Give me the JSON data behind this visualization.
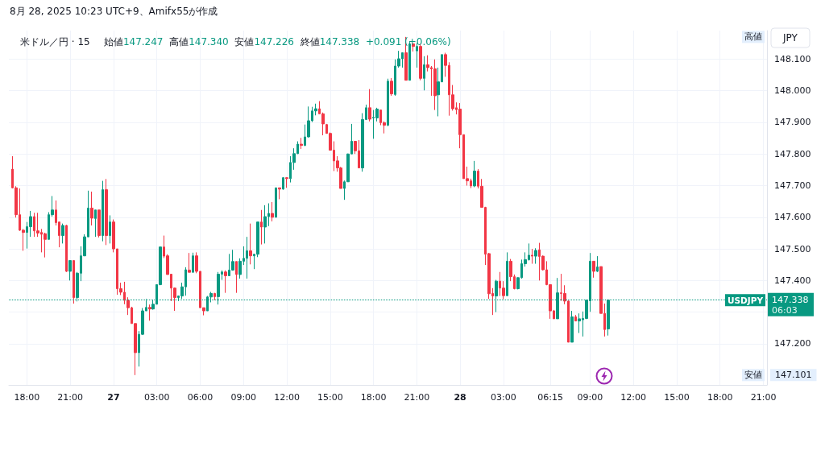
{
  "chart_data": {
    "type": "candlestick",
    "title": "米ドル／円 · 15",
    "subtitle": "始値147.247  高値147.340  安値147.226  終値147.338  +0.091 (+0.06%)",
    "annotations": [
      "8月 28, 2025 10:23 UTC+9、Amifx55が作成",
      {
        "text": "高値",
        "y": 148.17
      },
      {
        "text": "安値",
        "y": 147.101
      },
      "147.101",
      "147.338",
      "06:03",
      "JPY"
    ],
    "x": [
      "2025-08-26T17:00",
      "2025-08-26T17:15",
      "2025-08-26T17:30",
      "2025-08-26T17:45",
      "2025-08-26T18:00",
      "2025-08-26T18:15",
      "2025-08-26T18:30",
      "2025-08-26T18:45",
      "2025-08-26T19:00",
      "2025-08-26T19:15",
      "2025-08-26T19:30",
      "2025-08-26T19:45",
      "2025-08-26T20:00",
      "2025-08-26T20:15",
      "2025-08-26T20:30",
      "2025-08-26T20:45",
      "2025-08-26T21:00",
      "2025-08-26T21:15",
      "2025-08-26T21:30",
      "2025-08-26T21:45",
      "2025-08-26T22:00",
      "2025-08-26T22:15",
      "2025-08-26T22:30",
      "2025-08-26T22:45",
      "2025-08-26T23:00",
      "2025-08-26T23:15",
      "2025-08-26T23:30",
      "2025-08-26T23:45",
      "2025-08-27T00:00",
      "2025-08-27T00:15",
      "2025-08-27T00:30",
      "2025-08-27T00:45",
      "2025-08-27T01:00",
      "2025-08-27T01:15",
      "2025-08-27T01:30",
      "2025-08-27T01:45",
      "2025-08-27T02:00",
      "2025-08-27T02:15",
      "2025-08-27T02:30",
      "2025-08-27T02:45",
      "2025-08-27T03:00",
      "2025-08-27T03:15",
      "2025-08-27T03:30",
      "2025-08-27T03:45",
      "2025-08-27T04:00",
      "2025-08-27T04:15",
      "2025-08-27T04:30",
      "2025-08-27T04:45",
      "2025-08-27T05:00",
      "2025-08-27T05:15",
      "2025-08-27T05:30",
      "2025-08-27T05:45",
      "2025-08-27T06:00",
      "2025-08-27T06:15",
      "2025-08-27T06:30",
      "2025-08-27T06:45",
      "2025-08-27T07:00",
      "2025-08-27T07:15",
      "2025-08-27T07:30",
      "2025-08-27T07:45",
      "2025-08-27T08:00",
      "2025-08-27T08:15",
      "2025-08-27T08:30",
      "2025-08-27T08:45",
      "2025-08-27T09:00",
      "2025-08-27T09:15",
      "2025-08-27T09:30",
      "2025-08-27T09:45",
      "2025-08-27T10:00",
      "2025-08-27T10:15",
      "2025-08-27T10:30",
      "2025-08-27T10:45",
      "2025-08-27T11:00",
      "2025-08-27T11:15",
      "2025-08-27T11:30",
      "2025-08-27T11:45",
      "2025-08-27T12:00",
      "2025-08-27T12:15",
      "2025-08-27T12:30",
      "2025-08-27T12:45",
      "2025-08-27T13:00",
      "2025-08-27T13:15",
      "2025-08-27T13:30",
      "2025-08-27T13:45",
      "2025-08-27T14:00",
      "2025-08-27T14:15",
      "2025-08-27T14:30",
      "2025-08-27T14:45",
      "2025-08-27T15:00",
      "2025-08-27T15:15",
      "2025-08-27T15:30",
      "2025-08-27T15:45",
      "2025-08-27T16:00",
      "2025-08-27T16:15",
      "2025-08-27T16:30",
      "2025-08-27T16:45",
      "2025-08-27T17:00",
      "2025-08-27T17:15",
      "2025-08-27T17:30",
      "2025-08-27T17:45",
      "2025-08-27T18:00",
      "2025-08-27T18:15",
      "2025-08-27T18:30",
      "2025-08-27T18:45",
      "2025-08-27T19:00",
      "2025-08-27T19:15",
      "2025-08-27T19:30",
      "2025-08-27T19:45",
      "2025-08-27T20:00",
      "2025-08-27T20:15",
      "2025-08-27T20:30",
      "2025-08-27T20:45",
      "2025-08-27T21:00",
      "2025-08-27T21:15",
      "2025-08-27T21:30",
      "2025-08-27T21:45",
      "2025-08-27T22:00",
      "2025-08-27T22:15",
      "2025-08-27T22:30",
      "2025-08-27T22:45",
      "2025-08-27T23:00",
      "2025-08-27T23:15",
      "2025-08-27T23:30",
      "2025-08-27T23:45",
      "2025-08-28T00:00",
      "2025-08-28T00:15",
      "2025-08-28T00:30",
      "2025-08-28T00:45",
      "2025-08-28T01:00",
      "2025-08-28T01:15",
      "2025-08-28T01:30",
      "2025-08-28T01:45",
      "2025-08-28T02:00",
      "2025-08-28T02:15",
      "2025-08-28T02:30",
      "2025-08-28T02:45",
      "2025-08-28T03:00",
      "2025-08-28T03:15",
      "2025-08-28T03:30",
      "2025-08-28T03:45",
      "2025-08-28T04:00",
      "2025-08-28T04:15",
      "2025-08-28T04:30",
      "2025-08-28T04:45",
      "2025-08-28T05:00",
      "2025-08-28T05:15",
      "2025-08-28T05:30",
      "2025-08-28T05:45",
      "2025-08-28T06:00",
      "2025-08-28T06:15",
      "2025-08-28T06:30",
      "2025-08-28T06:45",
      "2025-08-28T07:00",
      "2025-08-28T07:15",
      "2025-08-28T07:30",
      "2025-08-28T07:45",
      "2025-08-28T08:00",
      "2025-08-28T08:15",
      "2025-08-28T08:30",
      "2025-08-28T08:45",
      "2025-08-28T09:00",
      "2025-08-28T09:15",
      "2025-08-28T09:30",
      "2025-08-28T09:45",
      "2025-08-28T10:00",
      "2025-08-28T10:15"
    ],
    "ohlc": [
      [
        147.752,
        147.793,
        147.691,
        147.693
      ],
      [
        147.693,
        147.698,
        147.599,
        147.608
      ],
      [
        147.608,
        147.691,
        147.557,
        147.559
      ],
      [
        147.559,
        147.563,
        147.494,
        147.552
      ],
      [
        147.552,
        147.585,
        147.501,
        147.57
      ],
      [
        147.57,
        147.62,
        147.538,
        147.602
      ],
      [
        147.602,
        147.614,
        147.538,
        147.557
      ],
      [
        147.557,
        147.614,
        147.538,
        147.55
      ],
      [
        147.552,
        147.563,
        147.489,
        147.546
      ],
      [
        147.548,
        147.551,
        147.473,
        147.53
      ],
      [
        147.53,
        147.616,
        147.53,
        147.608
      ],
      [
        147.608,
        147.667,
        147.602,
        147.623
      ],
      [
        147.623,
        147.653,
        147.574,
        147.583
      ],
      [
        147.585,
        147.586,
        147.505,
        147.542
      ],
      [
        147.542,
        147.58,
        147.517,
        147.574
      ],
      [
        147.574,
        147.576,
        147.427,
        147.429
      ],
      [
        147.429,
        147.463,
        147.4,
        147.463
      ],
      [
        147.463,
        147.463,
        147.327,
        147.346
      ],
      [
        147.346,
        147.427,
        147.334,
        147.423
      ],
      [
        147.423,
        147.508,
        147.398,
        147.478
      ],
      [
        147.478,
        147.546,
        147.477,
        147.538
      ],
      [
        147.538,
        147.684,
        147.538,
        147.629
      ],
      [
        147.629,
        147.681,
        147.574,
        147.597
      ],
      [
        147.596,
        147.623,
        147.538,
        147.623
      ],
      [
        147.623,
        147.623,
        147.536,
        147.542
      ],
      [
        147.542,
        147.715,
        147.524,
        147.687
      ],
      [
        147.687,
        147.721,
        147.512,
        147.542
      ],
      [
        147.542,
        147.606,
        147.517,
        147.585
      ],
      [
        147.585,
        147.593,
        147.489,
        147.5
      ],
      [
        147.5,
        147.5,
        147.355,
        147.374
      ],
      [
        147.374,
        147.393,
        147.354,
        147.363
      ],
      [
        147.363,
        147.396,
        147.325,
        147.337
      ],
      [
        147.337,
        147.347,
        147.291,
        147.314
      ],
      [
        147.314,
        147.317,
        147.264,
        147.264
      ],
      [
        147.264,
        147.264,
        147.101,
        147.172
      ],
      [
        147.172,
        147.24,
        147.128,
        147.23
      ],
      [
        147.23,
        147.313,
        147.228,
        147.304
      ],
      [
        147.304,
        147.342,
        147.304,
        147.315
      ],
      [
        147.315,
        147.324,
        147.273,
        147.31
      ],
      [
        147.31,
        147.34,
        147.308,
        147.325
      ],
      [
        147.325,
        147.387,
        147.325,
        147.387
      ],
      [
        147.387,
        147.506,
        147.385,
        147.506
      ],
      [
        147.506,
        147.542,
        147.471,
        147.477
      ],
      [
        147.478,
        147.483,
        147.419,
        147.419
      ],
      [
        147.42,
        147.42,
        147.335,
        147.376
      ],
      [
        147.376,
        147.378,
        147.304,
        147.346
      ],
      [
        147.346,
        147.352,
        147.335,
        147.351
      ],
      [
        147.351,
        147.393,
        147.342,
        147.38
      ],
      [
        147.38,
        147.442,
        147.352,
        147.434
      ],
      [
        147.433,
        147.487,
        147.426,
        147.426
      ],
      [
        147.426,
        147.488,
        147.426,
        147.478
      ],
      [
        147.478,
        147.489,
        147.423,
        147.429
      ],
      [
        147.429,
        147.429,
        147.314,
        147.314
      ],
      [
        147.314,
        147.314,
        147.29,
        147.304
      ],
      [
        147.304,
        147.351,
        147.304,
        147.348
      ],
      [
        147.348,
        147.364,
        147.331,
        147.359
      ],
      [
        147.359,
        147.361,
        147.338,
        147.349
      ],
      [
        147.349,
        147.427,
        147.324,
        147.42
      ],
      [
        147.42,
        147.432,
        147.402,
        147.427
      ],
      [
        147.427,
        147.432,
        147.361,
        147.415
      ],
      [
        147.415,
        147.484,
        147.415,
        147.433
      ],
      [
        147.433,
        147.497,
        147.431,
        147.46
      ],
      [
        147.46,
        147.46,
        147.361,
        147.419
      ],
      [
        147.419,
        147.47,
        147.406,
        147.461
      ],
      [
        147.461,
        147.508,
        147.449,
        147.47
      ],
      [
        147.47,
        147.538,
        147.406,
        147.494
      ],
      [
        147.494,
        147.58,
        147.451,
        147.478
      ],
      [
        147.478,
        147.484,
        147.436,
        147.483
      ],
      [
        147.483,
        147.585,
        147.474,
        147.585
      ],
      [
        147.585,
        147.623,
        147.514,
        147.569
      ],
      [
        147.569,
        147.638,
        147.517,
        147.602
      ],
      [
        147.602,
        147.644,
        147.572,
        147.612
      ],
      [
        147.612,
        147.648,
        147.587,
        147.6
      ],
      [
        147.6,
        147.693,
        147.6,
        147.693
      ],
      [
        147.693,
        147.693,
        147.657,
        147.689
      ],
      [
        147.689,
        147.727,
        147.687,
        147.725
      ],
      [
        147.725,
        147.727,
        147.693,
        147.722
      ],
      [
        147.722,
        147.793,
        147.71,
        147.773
      ],
      [
        147.773,
        147.818,
        147.75,
        147.801
      ],
      [
        147.801,
        147.84,
        147.8,
        147.831
      ],
      [
        147.831,
        147.851,
        147.816,
        147.827
      ],
      [
        147.827,
        147.893,
        147.825,
        147.854
      ],
      [
        147.854,
        147.95,
        147.852,
        147.905
      ],
      [
        147.905,
        147.949,
        147.901,
        147.936
      ],
      [
        147.936,
        147.959,
        147.922,
        147.943
      ],
      [
        147.943,
        147.967,
        147.927,
        147.927
      ],
      [
        147.927,
        147.931,
        147.859,
        147.895
      ],
      [
        147.893,
        147.895,
        147.864,
        147.865
      ],
      [
        147.865,
        147.868,
        147.812,
        147.812
      ],
      [
        147.812,
        147.84,
        147.746,
        147.778
      ],
      [
        147.778,
        147.793,
        147.744,
        147.756
      ],
      [
        147.756,
        147.759,
        147.691,
        147.691
      ],
      [
        147.691,
        147.716,
        147.655,
        147.712
      ],
      [
        147.712,
        147.801,
        147.712,
        147.8
      ],
      [
        147.8,
        147.895,
        147.8,
        147.84
      ],
      [
        147.84,
        147.84,
        147.8,
        147.81
      ],
      [
        147.81,
        147.844,
        147.755,
        147.756
      ],
      [
        147.756,
        147.929,
        147.744,
        147.909
      ],
      [
        147.909,
        147.956,
        147.908,
        147.946
      ],
      [
        147.946,
        148.005,
        147.903,
        147.91
      ],
      [
        147.914,
        147.939,
        147.848,
        147.916
      ],
      [
        147.914,
        147.946,
        147.903,
        147.942
      ],
      [
        147.939,
        147.939,
        147.891,
        147.899
      ],
      [
        147.899,
        147.903,
        147.865,
        147.891
      ],
      [
        147.891,
        148.038,
        147.888,
        148.03
      ],
      [
        148.03,
        148.04,
        147.984,
        147.99
      ],
      [
        147.988,
        148.099,
        147.984,
        148.078
      ],
      [
        148.078,
        148.126,
        148.073,
        148.101
      ],
      [
        148.101,
        148.12,
        148.073,
        148.12
      ],
      [
        148.12,
        148.17,
        148.033,
        148.033
      ],
      [
        148.033,
        148.154,
        148.033,
        148.148
      ],
      [
        148.148,
        148.15,
        148.124,
        148.14
      ],
      [
        148.126,
        148.15,
        148.073,
        148.14
      ],
      [
        148.14,
        148.148,
        148.033,
        148.039
      ],
      [
        148.039,
        148.109,
        148.001,
        148.082
      ],
      [
        148.082,
        148.112,
        148.061,
        148.073
      ],
      [
        148.073,
        148.078,
        147.984,
        148.069
      ],
      [
        148.069,
        148.099,
        147.939,
        147.984
      ],
      [
        147.987,
        148.073,
        147.919,
        148.028
      ],
      [
        148.028,
        148.114,
        148.027,
        148.114
      ],
      [
        148.114,
        148.12,
        148.044,
        148.08
      ],
      [
        148.08,
        148.09,
        147.921,
        147.987
      ],
      [
        147.987,
        148.018,
        147.937,
        147.943
      ],
      [
        147.946,
        147.963,
        147.925,
        147.94
      ],
      [
        147.942,
        147.961,
        147.818,
        147.861
      ],
      [
        147.861,
        147.861,
        147.722,
        147.722
      ],
      [
        147.722,
        147.76,
        147.7,
        147.715
      ],
      [
        147.715,
        147.722,
        147.692,
        147.699
      ],
      [
        147.699,
        147.778,
        147.695,
        147.746
      ],
      [
        147.746,
        147.752,
        147.691,
        147.698
      ],
      [
        147.698,
        147.721,
        147.631,
        147.631
      ],
      [
        147.631,
        147.633,
        147.449,
        147.483
      ],
      [
        147.485,
        147.487,
        147.342,
        147.358
      ],
      [
        147.359,
        147.376,
        147.291,
        147.351
      ],
      [
        147.351,
        147.402,
        147.3,
        147.398
      ],
      [
        147.398,
        147.427,
        147.351,
        147.376
      ],
      [
        147.376,
        147.398,
        147.341,
        147.352
      ],
      [
        147.352,
        147.489,
        147.352,
        147.461
      ],
      [
        147.461,
        147.468,
        147.398,
        147.412
      ],
      [
        147.412,
        147.419,
        147.372,
        147.374
      ],
      [
        147.374,
        147.41,
        147.372,
        147.409
      ],
      [
        147.409,
        147.466,
        147.406,
        147.453
      ],
      [
        147.453,
        147.489,
        147.444,
        147.466
      ],
      [
        147.466,
        147.517,
        147.463,
        147.48
      ],
      [
        147.48,
        147.5,
        147.453,
        147.477
      ],
      [
        147.477,
        147.502,
        147.453,
        147.495
      ],
      [
        147.497,
        147.519,
        147.4,
        147.476
      ],
      [
        147.477,
        147.479,
        147.432,
        147.434
      ],
      [
        147.434,
        147.461,
        147.385,
        147.387
      ],
      [
        147.387,
        147.387,
        147.279,
        147.304
      ],
      [
        147.304,
        147.307,
        147.279,
        147.279
      ],
      [
        147.279,
        147.408,
        147.279,
        147.361
      ],
      [
        147.361,
        147.421,
        147.336,
        147.359
      ],
      [
        147.359,
        147.385,
        147.325,
        147.335
      ],
      [
        147.335,
        147.336,
        147.205,
        147.205
      ],
      [
        147.205,
        147.304,
        147.205,
        147.285
      ],
      [
        147.285,
        147.291,
        147.272,
        147.272
      ],
      [
        147.272,
        147.296,
        147.234,
        147.279
      ],
      [
        147.276,
        147.302,
        147.223,
        147.28
      ],
      [
        147.28,
        147.338,
        147.278,
        147.338
      ],
      [
        147.336,
        147.487,
        147.301,
        147.461
      ],
      [
        147.461,
        147.461,
        147.409,
        147.429
      ],
      [
        147.429,
        147.477,
        147.427,
        147.443
      ],
      [
        147.444,
        147.444,
        147.296,
        147.296
      ],
      [
        147.296,
        147.327,
        147.223,
        147.245
      ],
      [
        147.247,
        147.34,
        147.226,
        147.338
      ]
    ],
    "colors": [
      "#f23645",
      "#f23645",
      "#f23645",
      "#f23645",
      "#089981",
      "#089981",
      "#f23645",
      "#f23645",
      "#f23645",
      "#f23645",
      "#089981",
      "#089981",
      "#f23645",
      "#f23645",
      "#089981",
      "#f23645",
      "#089981",
      "#f23645",
      "#089981",
      "#089981",
      "#089981",
      "#089981",
      "#f23645",
      "#089981",
      "#f23645",
      "#089981",
      "#f23645",
      "#089981",
      "#f23645",
      "#f23645",
      "#f23645",
      "#f23645",
      "#f23645",
      "#f23645",
      "#f23645",
      "#089981",
      "#089981",
      "#089981",
      "#f23645",
      "#089981",
      "#089981",
      "#089981",
      "#f23645",
      "#f23645",
      "#f23645",
      "#f23645",
      "#089981",
      "#089981",
      "#089981",
      "#f23645",
      "#089981",
      "#f23645",
      "#f23645",
      "#f23645",
      "#089981",
      "#089981",
      "#f23645",
      "#089981",
      "#089981",
      "#f23645",
      "#089981",
      "#089981",
      "#f23645",
      "#089981",
      "#089981",
      "#089981",
      "#f23645",
      "#089981",
      "#089981",
      "#f23645",
      "#089981",
      "#089981",
      "#f23645",
      "#089981",
      "#f23645",
      "#089981",
      "#f23645",
      "#089981",
      "#089981",
      "#089981",
      "#f23645",
      "#089981",
      "#089981",
      "#089981",
      "#089981",
      "#f23645",
      "#f23645",
      "#f23645",
      "#f23645",
      "#f23645",
      "#f23645",
      "#f23645",
      "#089981",
      "#089981",
      "#089981",
      "#f23645",
      "#f23645",
      "#089981",
      "#089981",
      "#f23645",
      "#089981",
      "#089981",
      "#f23645",
      "#f23645",
      "#089981",
      "#f23645",
      "#089981",
      "#089981",
      "#089981",
      "#f23645",
      "#089981",
      "#f23645",
      "#089981",
      "#f23645",
      "#089981",
      "#f23645",
      "#f23645",
      "#f23645",
      "#089981",
      "#089981",
      "#f23645",
      "#f23645",
      "#f23645",
      "#f23645",
      "#f23645",
      "#f23645",
      "#f23645",
      "#f23645",
      "#089981",
      "#f23645",
      "#f23645",
      "#f23645",
      "#f23645",
      "#f23645",
      "#089981",
      "#f23645",
      "#f23645",
      "#089981",
      "#f23645",
      "#f23645",
      "#089981",
      "#089981",
      "#089981",
      "#089981",
      "#f23645",
      "#089981",
      "#f23645",
      "#f23645",
      "#f23645",
      "#f23645",
      "#f23645",
      "#089981",
      "#f23645",
      "#f23645",
      "#f23645",
      "#089981",
      "#f23645",
      "#089981",
      "#089981",
      "#089981",
      "#089981",
      "#f23645",
      "#089981",
      "#f23645",
      "#f23645",
      "#089981"
    ],
    "xlim": [
      "2025-08-26T16:45",
      "2025-08-28T21:15"
    ],
    "xticks": [
      {
        "value": "2025-08-26T18:00",
        "label": "18:00"
      },
      {
        "value": "2025-08-26T21:00",
        "label": "21:00"
      },
      {
        "value": "2025-08-27T00:00",
        "label": "27"
      },
      {
        "value": "2025-08-27T03:00",
        "label": "03:00"
      },
      {
        "value": "2025-08-27T06:00",
        "label": "06:00"
      },
      {
        "value": "2025-08-27T09:00",
        "label": "09:00"
      },
      {
        "value": "2025-08-27T12:00",
        "label": "12:00"
      },
      {
        "value": "2025-08-27T15:00",
        "label": "15:00"
      },
      {
        "value": "2025-08-27T18:00",
        "label": "18:00"
      },
      {
        "value": "2025-08-27T21:00",
        "label": "21:00"
      },
      {
        "value": "2025-08-28T00:00",
        "label": "28"
      },
      {
        "value": "2025-08-28T03:00",
        "label": "03:00"
      },
      {
        "value": "2025-08-28T06:15",
        "label": "06:15"
      },
      {
        "value": "2025-08-28T09:00",
        "label": "09:00"
      },
      {
        "value": "2025-08-28T12:00",
        "label": "12:00"
      },
      {
        "value": "2025-08-28T15:00",
        "label": "15:00"
      },
      {
        "value": "2025-08-28T18:00",
        "label": "18:00"
      },
      {
        "value": "2025-08-28T21:00",
        "label": "21:00"
      }
    ],
    "ylim": [
      147.07,
      148.19
    ],
    "yticks": [
      {
        "value": 147.2,
        "label": "147.200"
      },
      {
        "value": 147.3,
        "label": null
      },
      {
        "value": 147.4,
        "label": "147.400"
      },
      {
        "value": 147.5,
        "label": "147.500"
      },
      {
        "value": 147.6,
        "label": "147.600"
      },
      {
        "value": 147.7,
        "label": "147.700"
      },
      {
        "value": 147.8,
        "label": "147.800"
      },
      {
        "value": 147.9,
        "label": "147.900"
      },
      {
        "value": 148,
        "label": "148.000"
      },
      {
        "value": 148.1,
        "label": "148.100"
      }
    ],
    "grid": true,
    "ref_lines": [
      {
        "axis": "y",
        "value": 147.338,
        "label": "USDJPY",
        "color": "#089981",
        "line_style": "dotted"
      }
    ]
  }
}
